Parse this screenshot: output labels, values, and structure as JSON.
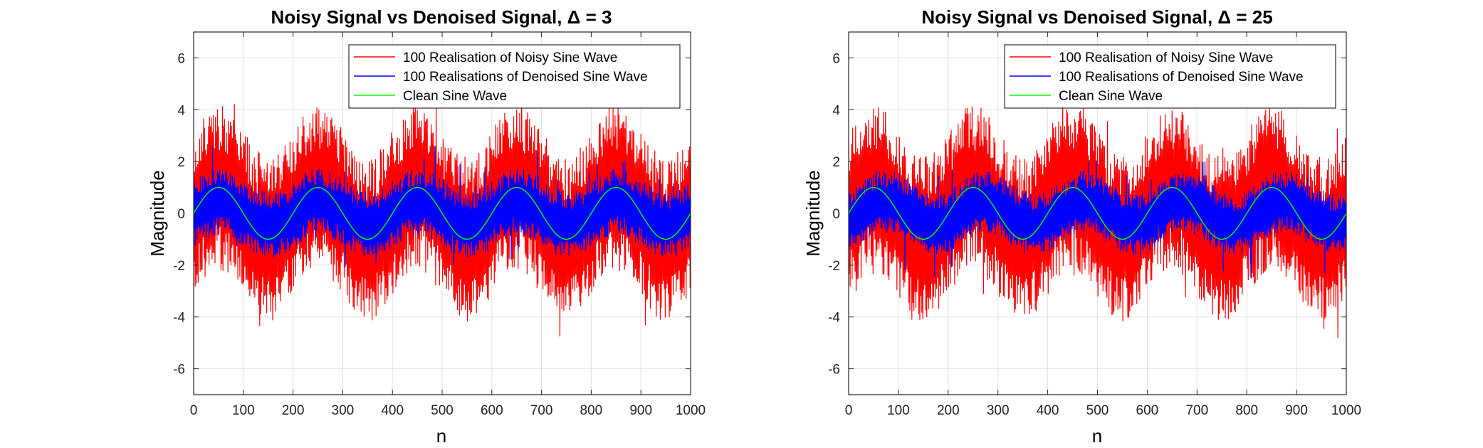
{
  "colors": {
    "noisy": "#ff0000",
    "denoised": "#0000ff",
    "clean": "#00ff00"
  },
  "chart_data": [
    {
      "type": "line",
      "title": "Noisy Signal vs Denoised Signal, Δ = 3",
      "xlabel": "n",
      "ylabel": "Magnitude",
      "xlim": [
        0,
        1000
      ],
      "ylim": [
        -7,
        7
      ],
      "xticks": [
        "0",
        "100",
        "200",
        "300",
        "400",
        "500",
        "600",
        "700",
        "800",
        "900",
        "1000"
      ],
      "yticks": [
        "6",
        "4",
        "2",
        "0",
        "-2",
        "-4",
        "-6"
      ],
      "grid": true,
      "legend_position": "top-right",
      "delta": 3,
      "series": [
        {
          "name": "100 Realisation of Noisy Sine Wave",
          "color": "#ff0000",
          "kind": "band",
          "center_amplitude": 1,
          "period": 200,
          "half_width": 3.2
        },
        {
          "name": "100 Realisations of Denoised Sine Wave",
          "color": "#0000ff",
          "kind": "band",
          "center_amplitude": 0.45,
          "period": 200,
          "half_width": 1.3
        },
        {
          "name": "Clean Sine Wave",
          "color": "#00ff00",
          "kind": "line",
          "amplitude": 1,
          "period": 200
        }
      ]
    },
    {
      "type": "line",
      "title": "Noisy Signal vs Denoised Signal, Δ = 25",
      "xlabel": "n",
      "ylabel": "Magnitude",
      "xlim": [
        0,
        1000
      ],
      "ylim": [
        -7,
        7
      ],
      "xticks": [
        "0",
        "100",
        "200",
        "300",
        "400",
        "500",
        "600",
        "700",
        "800",
        "900",
        "1000"
      ],
      "yticks": [
        "6",
        "4",
        "2",
        "0",
        "-2",
        "-4",
        "-6"
      ],
      "grid": true,
      "legend_position": "top-right",
      "delta": 25,
      "series": [
        {
          "name": "100 Realisation of Noisy Sine Wave",
          "color": "#ff0000",
          "kind": "band",
          "center_amplitude": 1,
          "period": 200,
          "half_width": 3.2
        },
        {
          "name": "100 Realisations of Denoised Sine Wave",
          "color": "#0000ff",
          "kind": "band",
          "center_amplitude": 0.45,
          "period": 200,
          "half_width": 1.2
        },
        {
          "name": "Clean Sine Wave",
          "color": "#00ff00",
          "kind": "line",
          "amplitude": 1,
          "period": 200
        }
      ]
    }
  ]
}
